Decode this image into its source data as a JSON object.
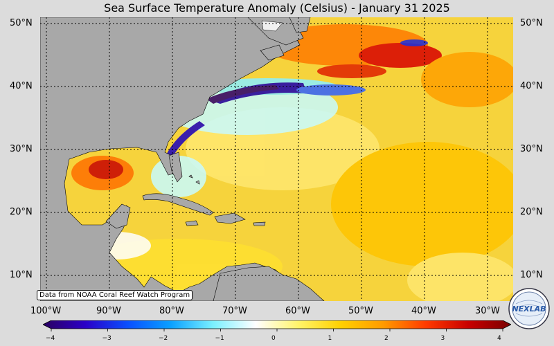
{
  "title": "Sea Surface Temperature Anomaly (Celsius) - January 31 2025",
  "lat_labels": [
    "50°N",
    "40°N",
    "30°N",
    "20°N",
    "10°N"
  ],
  "lon_labels": [
    "100°W",
    "90°W",
    "80°W",
    "70°W",
    "60°W",
    "50°W",
    "40°W",
    "30°W"
  ],
  "credit": "Data from NOAA Coral Reef Watch Program",
  "colorbar": {
    "min": -4,
    "max": 4,
    "ticks": [
      "−4",
      "−3",
      "−2",
      "−1",
      "0",
      "1",
      "2",
      "3",
      "4"
    ],
    "colors": [
      "#2a0060",
      "#2a00c8",
      "#0a50ff",
      "#0aa0ff",
      "#7af0ff",
      "#ffffff",
      "#fff46a",
      "#ffd000",
      "#ff9a00",
      "#ff3a00",
      "#c80000",
      "#7a0000"
    ]
  },
  "logo": {
    "text": "NEXLAB",
    "icon": "nexlab-globe-logo"
  },
  "colors": {
    "land": "#a8a8a8",
    "background": "#dcdcdc",
    "ocean_base": "#f5d23a"
  }
}
